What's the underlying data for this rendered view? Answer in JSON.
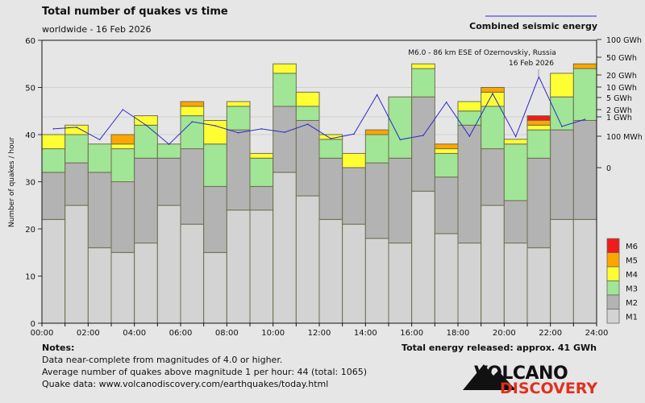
{
  "header": {
    "title": "Total number of quakes vs time",
    "subtitle": "worldwide - 16 Feb 2026",
    "energy_legend": "Combined seismic energy"
  },
  "annotation": {
    "line1": "M6.0 - 86 km ESE of Ozernovskiy, Russia",
    "line2": "16 Feb 2026"
  },
  "notes": {
    "heading": "Notes:",
    "lines": [
      "Data near-complete from magnitudes of 4.0 or higher.",
      "Average number of quakes above magnitude 1 per hour: 44 (total: 1065)",
      "Quake data: www.volcanodiscovery.com/earthquakes/today.html"
    ],
    "total_energy": "Total energy released: approx. 41 GWh"
  },
  "logo": {
    "line1": "VOLCANO",
    "line2": "DISCOVERY"
  },
  "colors": {
    "M1": "#d3d3d3",
    "M2": "#b3b3b3",
    "M3": "#a0e696",
    "M4": "#ffff33",
    "M5": "#ffa500",
    "M6": "#ee1c1c",
    "bar_border": "#6e6e50",
    "energy_line": "#2b2bc8"
  },
  "chart_data": {
    "type": "bar",
    "stacked": true,
    "title": "Total number of quakes vs time",
    "ylabel": "Number of quakes / hour",
    "ylim": [
      0,
      60
    ],
    "yticks": [
      0,
      10,
      20,
      30,
      40,
      50,
      60
    ],
    "xticks": [
      "00:00",
      "02:00",
      "04:00",
      "06:00",
      "08:00",
      "10:00",
      "12:00",
      "14:00",
      "16:00",
      "18:00",
      "20:00",
      "22:00",
      "24:00"
    ],
    "categories": [
      "00",
      "01",
      "02",
      "03",
      "04",
      "05",
      "06",
      "07",
      "08",
      "09",
      "10",
      "11",
      "12",
      "13",
      "14",
      "15",
      "16",
      "17",
      "18",
      "19",
      "20",
      "21",
      "22",
      "23"
    ],
    "series": [
      {
        "name": "M1",
        "values": [
          22,
          25,
          16,
          15,
          17,
          25,
          21,
          15,
          24,
          24,
          32,
          27,
          22,
          21,
          18,
          17,
          28,
          19,
          17,
          25,
          17,
          16,
          22,
          22
        ]
      },
      {
        "name": "M2",
        "values": [
          10,
          9,
          16,
          15,
          18,
          10,
          16,
          14,
          17,
          5,
          14,
          16,
          13,
          12,
          16,
          18,
          20,
          12,
          25,
          12,
          9,
          19,
          19,
          21
        ]
      },
      {
        "name": "M3",
        "values": [
          5,
          6,
          6,
          7,
          7,
          3,
          7,
          9,
          5,
          6,
          7,
          3,
          4,
          0,
          6,
          13,
          6,
          5,
          3,
          9,
          12,
          6,
          7,
          11
        ]
      },
      {
        "name": "M4",
        "values": [
          3,
          2,
          0,
          1,
          2,
          0,
          2,
          5,
          1,
          1,
          2,
          3,
          1,
          3,
          0,
          0,
          1,
          1,
          2,
          3,
          1,
          1,
          5,
          0
        ]
      },
      {
        "name": "M5",
        "values": [
          0,
          0,
          0,
          2,
          0,
          0,
          1,
          0,
          0,
          0,
          0,
          0,
          0,
          0,
          1,
          0,
          0,
          1,
          0,
          1,
          0,
          1,
          0,
          1
        ]
      },
      {
        "name": "M6",
        "values": [
          0,
          0,
          0,
          0,
          0,
          0,
          0,
          0,
          0,
          0,
          0,
          0,
          0,
          0,
          0,
          0,
          0,
          0,
          0,
          0,
          0,
          1,
          0,
          0
        ]
      }
    ],
    "legend": [
      "M6",
      "M5",
      "M4",
      "M3",
      "M2",
      "M1"
    ],
    "legend_placement": "right",
    "energy": {
      "name": "Combined seismic energy",
      "unit": "MWh",
      "right_axis_scale": "log",
      "right_ticks": [
        {
          "label": "100 GWh",
          "value": 100000
        },
        {
          "label": "50 GWh",
          "value": 50000
        },
        {
          "label": "20 GWh",
          "value": 20000
        },
        {
          "label": "10 GWh",
          "value": 10000
        },
        {
          "label": "5 GWh",
          "value": 5000
        },
        {
          "label": "2 GWh",
          "value": 2000
        },
        {
          "label": "1 GWh",
          "value": 1000
        },
        {
          "label": "100 MWh",
          "value": 100
        },
        {
          "label": "0",
          "value": 0
        }
      ],
      "values": [
        240,
        290,
        60,
        2000,
        380,
        30,
        560,
        350,
        150,
        240,
        160,
        420,
        70,
        130,
        6000,
        60,
        110,
        3500,
        100,
        6500,
        95,
        18000,
        320,
        750
      ]
    }
  }
}
